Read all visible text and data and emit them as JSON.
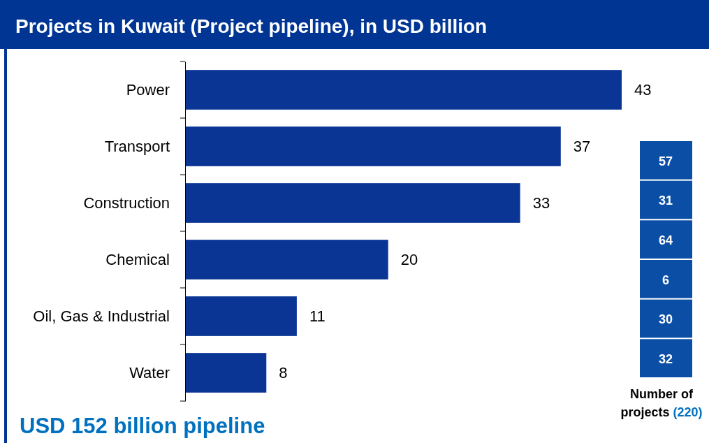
{
  "chart_data": [
    {
      "type": "bar",
      "orientation": "horizontal",
      "title": "Projects in Kuwait (Project pipeline), in USD billion",
      "categories": [
        "Power",
        "Transport",
        "Construction",
        "Chemical",
        "Oil, Gas & Industrial",
        "Water"
      ],
      "values": [
        43,
        37,
        33,
        20,
        11,
        8
      ],
      "color": "#0a3595",
      "data_labels": true,
      "annotations": [
        "USD 152 billion pipeline"
      ]
    },
    {
      "type": "other",
      "categories": [
        null,
        null,
        null,
        null,
        null,
        null
      ],
      "values": [
        57,
        31,
        64,
        6,
        30,
        32
      ],
      "color": "#0a4ea6",
      "data_labels": true,
      "xlabel": "Number of projects",
      "annotations": [
        "(220)"
      ]
    }
  ]
}
